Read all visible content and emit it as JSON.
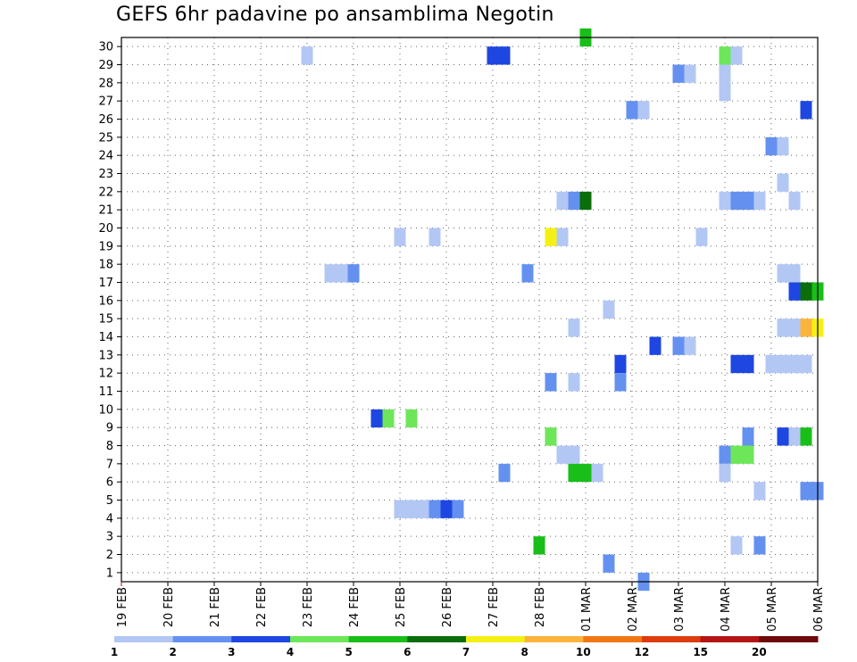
{
  "chart_data": {
    "type": "heatmap",
    "title": "GEFS 6hr padavine po ansamblima Negotin",
    "xlabel": "",
    "ylabel": "",
    "x_unit": "6-hour steps (0 = 19 FEB 00Z)",
    "x_tick_labels": [
      "19 FEB",
      "20 FEB",
      "21 FEB",
      "22 FEB",
      "23 FEB",
      "24 FEB",
      "25 FEB",
      "26 FEB",
      "27 FEB",
      "28 FEB",
      "01 MAR",
      "02 MAR",
      "03 MAR",
      "04 MAR",
      "05 MAR",
      "06 MAR"
    ],
    "y_tick_labels": [
      "1",
      "2",
      "3",
      "4",
      "5",
      "6",
      "7",
      "8",
      "9",
      "10",
      "11",
      "12",
      "13",
      "14",
      "15",
      "16",
      "17",
      "18",
      "19",
      "20",
      "21",
      "22",
      "23",
      "24",
      "25",
      "26",
      "27",
      "28",
      "29",
      "30"
    ],
    "xlim": [
      0,
      60
    ],
    "ylim": [
      0,
      30
    ],
    "grid": true,
    "legend": {
      "placement": "bottom",
      "labels": [
        "1",
        "2",
        "3",
        "4",
        "5",
        "6",
        "7",
        "8",
        "10",
        "12",
        "15",
        "20"
      ],
      "colors": [
        "#b3c7f5",
        "#6491f0",
        "#1e46e1",
        "#6ee65a",
        "#19be19",
        "#0a6e0a",
        "#f5f014",
        "#fab43c",
        "#f07814",
        "#dc3c0f",
        "#b41414",
        "#6e0a0a"
      ]
    },
    "cells": [
      {
        "m": 30,
        "x": 40,
        "c": 4
      },
      {
        "m": 29,
        "x": 16,
        "c": 0
      },
      {
        "m": 29,
        "x": 32,
        "c": 2
      },
      {
        "m": 29,
        "x": 33,
        "c": 2
      },
      {
        "m": 29,
        "x": 52,
        "c": 3
      },
      {
        "m": 29,
        "x": 53,
        "c": 0
      },
      {
        "m": 28,
        "x": 48,
        "c": 1
      },
      {
        "m": 28,
        "x": 49,
        "c": 0
      },
      {
        "m": 28,
        "x": 52,
        "c": 0
      },
      {
        "m": 27,
        "x": 52,
        "c": 0
      },
      {
        "m": 26,
        "x": 44,
        "c": 1
      },
      {
        "m": 26,
        "x": 45,
        "c": 0
      },
      {
        "m": 26,
        "x": 59,
        "c": 2
      },
      {
        "m": 24,
        "x": 56,
        "c": 1
      },
      {
        "m": 24,
        "x": 57,
        "c": 0
      },
      {
        "m": 22,
        "x": 57,
        "c": 0
      },
      {
        "m": 21,
        "x": 38,
        "c": 0
      },
      {
        "m": 21,
        "x": 39,
        "c": 1
      },
      {
        "m": 21,
        "x": 40,
        "c": 5
      },
      {
        "m": 21,
        "x": 52,
        "c": 0
      },
      {
        "m": 21,
        "x": 53,
        "c": 1
      },
      {
        "m": 21,
        "x": 54,
        "c": 1
      },
      {
        "m": 21,
        "x": 55,
        "c": 0
      },
      {
        "m": 21,
        "x": 58,
        "c": 0
      },
      {
        "m": 19,
        "x": 24,
        "c": 0
      },
      {
        "m": 19,
        "x": 27,
        "c": 0
      },
      {
        "m": 19,
        "x": 37,
        "c": 6
      },
      {
        "m": 19,
        "x": 38,
        "c": 0
      },
      {
        "m": 19,
        "x": 50,
        "c": 0
      },
      {
        "m": 17,
        "x": 18,
        "c": 0
      },
      {
        "m": 17,
        "x": 19,
        "c": 0
      },
      {
        "m": 17,
        "x": 20,
        "c": 1
      },
      {
        "m": 17,
        "x": 35,
        "c": 1
      },
      {
        "m": 17,
        "x": 57,
        "c": 0
      },
      {
        "m": 17,
        "x": 58,
        "c": 0
      },
      {
        "m": 16,
        "x": 58,
        "c": 2
      },
      {
        "m": 16,
        "x": 59,
        "c": 5
      },
      {
        "m": 16,
        "x": 60,
        "c": 4
      },
      {
        "m": 15,
        "x": 42,
        "c": 0
      },
      {
        "m": 14,
        "x": 39,
        "c": 0
      },
      {
        "m": 14,
        "x": 57,
        "c": 0
      },
      {
        "m": 14,
        "x": 58,
        "c": 0
      },
      {
        "m": 14,
        "x": 59,
        "c": 7
      },
      {
        "m": 14,
        "x": 60,
        "c": 6
      },
      {
        "m": 13,
        "x": 46,
        "c": 2
      },
      {
        "m": 13,
        "x": 48,
        "c": 1
      },
      {
        "m": 13,
        "x": 49,
        "c": 0
      },
      {
        "m": 12,
        "x": 43,
        "c": 2
      },
      {
        "m": 12,
        "x": 53,
        "c": 2
      },
      {
        "m": 12,
        "x": 54,
        "c": 2
      },
      {
        "m": 12,
        "x": 56,
        "c": 0
      },
      {
        "m": 12,
        "x": 57,
        "c": 0
      },
      {
        "m": 12,
        "x": 58,
        "c": 0
      },
      {
        "m": 12,
        "x": 59,
        "c": 0
      },
      {
        "m": 11,
        "x": 37,
        "c": 1
      },
      {
        "m": 11,
        "x": 39,
        "c": 0
      },
      {
        "m": 11,
        "x": 43,
        "c": 1
      },
      {
        "m": 9,
        "x": 22,
        "c": 2
      },
      {
        "m": 9,
        "x": 23,
        "c": 3
      },
      {
        "m": 9,
        "x": 25,
        "c": 3
      },
      {
        "m": 8,
        "x": 37,
        "c": 3
      },
      {
        "m": 8,
        "x": 54,
        "c": 1
      },
      {
        "m": 8,
        "x": 57,
        "c": 2
      },
      {
        "m": 8,
        "x": 58,
        "c": 0
      },
      {
        "m": 8,
        "x": 59,
        "c": 4
      },
      {
        "m": 7,
        "x": 38,
        "c": 0
      },
      {
        "m": 7,
        "x": 39,
        "c": 0
      },
      {
        "m": 7,
        "x": 52,
        "c": 1
      },
      {
        "m": 7,
        "x": 53,
        "c": 3
      },
      {
        "m": 7,
        "x": 54,
        "c": 3
      },
      {
        "m": 6,
        "x": 33,
        "c": 1
      },
      {
        "m": 6,
        "x": 39,
        "c": 4
      },
      {
        "m": 6,
        "x": 40,
        "c": 4
      },
      {
        "m": 6,
        "x": 41,
        "c": 0
      },
      {
        "m": 6,
        "x": 52,
        "c": 0
      },
      {
        "m": 5,
        "x": 55,
        "c": 0
      },
      {
        "m": 5,
        "x": 59,
        "c": 1
      },
      {
        "m": 5,
        "x": 60,
        "c": 1
      },
      {
        "m": 4,
        "x": 24,
        "c": 0
      },
      {
        "m": 4,
        "x": 25,
        "c": 0
      },
      {
        "m": 4,
        "x": 26,
        "c": 0
      },
      {
        "m": 4,
        "x": 27,
        "c": 1
      },
      {
        "m": 4,
        "x": 28,
        "c": 2
      },
      {
        "m": 4,
        "x": 29,
        "c": 1
      },
      {
        "m": 2,
        "x": 36,
        "c": 4
      },
      {
        "m": 2,
        "x": 53,
        "c": 0
      },
      {
        "m": 2,
        "x": 55,
        "c": 1
      },
      {
        "m": 1,
        "x": 42,
        "c": 1
      },
      {
        "m": 0,
        "x": 45,
        "c": 1
      }
    ]
  }
}
